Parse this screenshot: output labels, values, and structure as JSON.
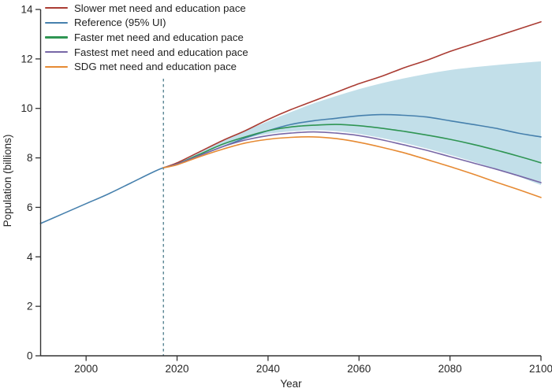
{
  "figure": {
    "background": "#ffffff",
    "axis_color": "#333333",
    "text_color": "#262626",
    "legend": {
      "items": [
        {
          "label": "Slower met need and education pace",
          "color": "#aa3c33"
        },
        {
          "label": "Reference (95% UI)",
          "color": "#4680ad"
        },
        {
          "label": "Faster met need and education pace",
          "color": "#2f9553"
        },
        {
          "label": "Fastest met need and education pace",
          "color": "#7767a6"
        },
        {
          "label": "SDG met need and education pace",
          "color": "#e68a33"
        }
      ]
    }
  },
  "chart_data": {
    "type": "line",
    "title": "",
    "xlabel": "Year",
    "ylabel": "Population (billions)",
    "xlim": [
      1990,
      2100
    ],
    "ylim": [
      0,
      14
    ],
    "x_ticks": [
      2000,
      2020,
      2040,
      2060,
      2080,
      2100
    ],
    "y_ticks": [
      0,
      2,
      4,
      6,
      8,
      10,
      12,
      14
    ],
    "grid": false,
    "legend_position": "top-left-inside",
    "vline": {
      "x": 2017,
      "top_value": 11.2,
      "style": "dashed",
      "color": "#4c7c8b"
    },
    "band": {
      "name": "Reference 95% UI",
      "color": "#c2dfe9",
      "x": [
        2017,
        2020,
        2025,
        2030,
        2035,
        2040,
        2045,
        2050,
        2055,
        2060,
        2065,
        2070,
        2075,
        2080,
        2085,
        2090,
        2095,
        2100
      ],
      "upper": [
        7.6,
        7.78,
        8.27,
        8.7,
        9.1,
        9.48,
        9.85,
        10.2,
        10.5,
        10.78,
        11.02,
        11.22,
        11.4,
        11.55,
        11.66,
        11.75,
        11.83,
        11.9
      ],
      "lower": [
        7.6,
        7.73,
        8.12,
        8.5,
        8.78,
        8.97,
        9.07,
        9.12,
        9.08,
        8.97,
        8.8,
        8.6,
        8.37,
        8.12,
        7.85,
        7.56,
        7.25,
        6.9
      ]
    },
    "series": [
      {
        "name": "Slower met need and education pace",
        "color": "#aa3c33",
        "x": [
          2017,
          2020,
          2025,
          2030,
          2035,
          2040,
          2045,
          2050,
          2055,
          2060,
          2065,
          2070,
          2075,
          2080,
          2085,
          2090,
          2095,
          2100
        ],
        "values": [
          7.6,
          7.8,
          8.25,
          8.7,
          9.1,
          9.55,
          9.95,
          10.3,
          10.65,
          11.0,
          11.3,
          11.65,
          11.95,
          12.3,
          12.6,
          12.9,
          13.2,
          13.5
        ]
      },
      {
        "name": "Reference",
        "color": "#4680ad",
        "x": [
          1990,
          1995,
          2000,
          2005,
          2010,
          2015,
          2017,
          2020,
          2025,
          2030,
          2035,
          2040,
          2045,
          2050,
          2055,
          2060,
          2065,
          2070,
          2075,
          2080,
          2085,
          2090,
          2095,
          2100
        ],
        "values": [
          5.35,
          5.75,
          6.15,
          6.55,
          7.0,
          7.45,
          7.6,
          7.75,
          8.1,
          8.45,
          8.8,
          9.1,
          9.35,
          9.5,
          9.6,
          9.7,
          9.75,
          9.72,
          9.65,
          9.5,
          9.35,
          9.2,
          9.0,
          8.85
        ]
      },
      {
        "name": "Faster met need and education pace",
        "color": "#2f9553",
        "x": [
          2017,
          2020,
          2025,
          2030,
          2035,
          2040,
          2045,
          2050,
          2055,
          2060,
          2065,
          2070,
          2075,
          2080,
          2085,
          2090,
          2095,
          2100
        ],
        "values": [
          7.6,
          7.75,
          8.15,
          8.55,
          8.85,
          9.1,
          9.25,
          9.32,
          9.35,
          9.3,
          9.2,
          9.07,
          8.92,
          8.75,
          8.55,
          8.32,
          8.07,
          7.8
        ]
      },
      {
        "name": "Fastest met need and education pace",
        "color": "#7767a6",
        "x": [
          2017,
          2020,
          2025,
          2030,
          2035,
          2040,
          2045,
          2050,
          2055,
          2060,
          2065,
          2070,
          2075,
          2080,
          2085,
          2090,
          2095,
          2100
        ],
        "values": [
          7.6,
          7.75,
          8.1,
          8.45,
          8.72,
          8.9,
          9.0,
          9.05,
          9.0,
          8.9,
          8.73,
          8.52,
          8.3,
          8.05,
          7.8,
          7.55,
          7.28,
          7.0
        ]
      },
      {
        "name": "SDG met need and education pace",
        "color": "#e68a33",
        "x": [
          2017,
          2020,
          2025,
          2030,
          2035,
          2040,
          2045,
          2050,
          2055,
          2060,
          2065,
          2070,
          2075,
          2080,
          2085,
          2090,
          2095,
          2100
        ],
        "values": [
          7.6,
          7.72,
          8.05,
          8.35,
          8.6,
          8.75,
          8.83,
          8.85,
          8.78,
          8.63,
          8.43,
          8.2,
          7.93,
          7.65,
          7.35,
          7.03,
          6.72,
          6.4
        ]
      }
    ]
  }
}
